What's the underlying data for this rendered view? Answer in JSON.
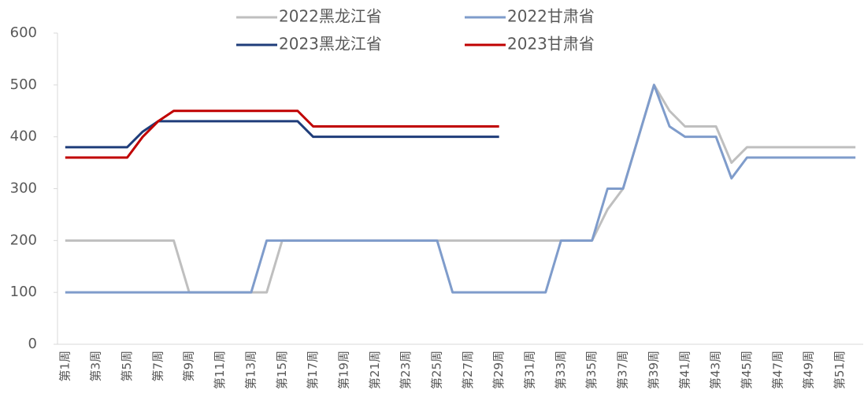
{
  "chart_data": {
    "type": "line",
    "categories": [
      "第1周",
      null,
      "第3周",
      null,
      "第5周",
      null,
      "第7周",
      null,
      "第9周",
      null,
      "第11周",
      null,
      "第13周",
      null,
      "第15周",
      null,
      "第17周",
      null,
      "第19周",
      null,
      "第21周",
      null,
      "第23周",
      null,
      "第25周",
      null,
      "第27周",
      null,
      "第29周",
      null,
      "第31周",
      null,
      "第33周",
      null,
      "第35周",
      null,
      "第37周",
      null,
      "第39周",
      null,
      "第41周",
      null,
      "第43周",
      null,
      "第45周",
      null,
      "第47周",
      null,
      "第49周",
      null,
      "第51周",
      null
    ],
    "series": [
      {
        "name": "2022黑龙江省",
        "color": "#bfbfbf",
        "values": [
          200,
          200,
          200,
          200,
          200,
          200,
          200,
          200,
          100,
          100,
          100,
          100,
          100,
          100,
          200,
          200,
          200,
          200,
          200,
          200,
          200,
          200,
          200,
          200,
          200,
          200,
          200,
          200,
          200,
          200,
          200,
          200,
          200,
          200,
          200,
          260,
          300,
          400,
          500,
          450,
          420,
          420,
          420,
          350,
          380,
          380,
          380,
          380,
          380,
          380,
          380,
          380
        ]
      },
      {
        "name": "2022甘肃省",
        "color": "#7f9ccb",
        "values": [
          100,
          100,
          100,
          100,
          100,
          100,
          100,
          100,
          100,
          100,
          100,
          100,
          100,
          200,
          200,
          200,
          200,
          200,
          200,
          200,
          200,
          200,
          200,
          200,
          200,
          100,
          100,
          100,
          100,
          100,
          100,
          100,
          200,
          200,
          200,
          300,
          300,
          400,
          500,
          420,
          400,
          400,
          400,
          320,
          360,
          360,
          360,
          360,
          360,
          360,
          360,
          360
        ]
      },
      {
        "name": "2023黑龙江省",
        "color": "#1f3d7a",
        "values": [
          380,
          380,
          380,
          380,
          380,
          410,
          430,
          430,
          430,
          430,
          430,
          430,
          430,
          430,
          430,
          430,
          400,
          400,
          400,
          400,
          400,
          400,
          400,
          400,
          400,
          400,
          400,
          400,
          400,
          null,
          null,
          null,
          null,
          null,
          null,
          null,
          null,
          null,
          null,
          null,
          null,
          null,
          null,
          null,
          null,
          null,
          null,
          null,
          null,
          null,
          null,
          null
        ]
      },
      {
        "name": "2023甘肃省",
        "color": "#c00000",
        "values": [
          360,
          360,
          360,
          360,
          360,
          400,
          430,
          450,
          450,
          450,
          450,
          450,
          450,
          450,
          450,
          450,
          420,
          420,
          420,
          420,
          420,
          420,
          420,
          420,
          420,
          420,
          420,
          420,
          420,
          null,
          null,
          null,
          null,
          null,
          null,
          null,
          null,
          null,
          null,
          null,
          null,
          null,
          null,
          null,
          null,
          null,
          null,
          null,
          null,
          null,
          null,
          null
        ]
      }
    ],
    "ylim": [
      0,
      600
    ],
    "yticks": [
      0,
      100,
      200,
      300,
      400,
      500,
      600
    ],
    "grid": false
  }
}
